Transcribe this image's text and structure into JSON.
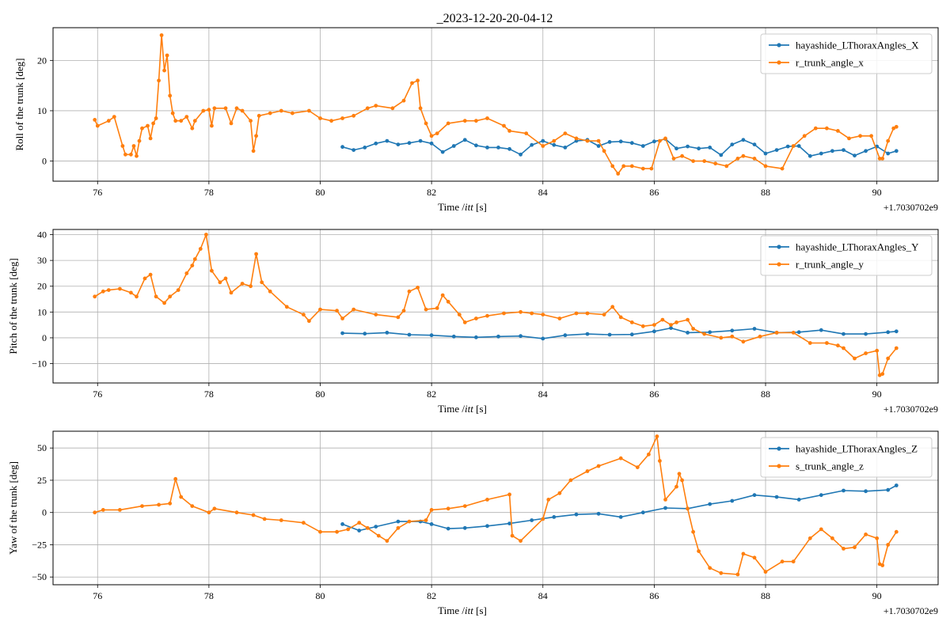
{
  "figure": {
    "title": "_2023-12-20-20-04-12"
  },
  "colors": {
    "series_a": "#1f77b4",
    "series_b": "#ff7f0e",
    "grid": "#b0b0b0"
  },
  "chart_data": [
    {
      "type": "line",
      "title": "_2023-12-20-20-04-12",
      "xlabel": "Time /$itt$ [s]",
      "ylabel": "Roll of the trunk [deg]",
      "offset_text": "+1.7030702e9",
      "xlim": [
        75.2,
        91.1
      ],
      "ylim": [
        -4,
        26.5
      ],
      "xticks": [
        76,
        78,
        80,
        82,
        84,
        86,
        88,
        90
      ],
      "yticks": [
        0,
        10,
        20
      ],
      "grid": true,
      "legend_position": "upper right",
      "series": [
        {
          "name": "hayashide_LThoraxAngles_X",
          "color": "#1f77b4",
          "x": [
            80.4,
            80.6,
            80.8,
            81.0,
            81.2,
            81.4,
            81.6,
            81.8,
            82.0,
            82.2,
            82.4,
            82.6,
            82.8,
            83.0,
            83.2,
            83.4,
            83.6,
            83.8,
            84.0,
            84.2,
            84.4,
            84.6,
            84.8,
            85.0,
            85.2,
            85.4,
            85.6,
            85.8,
            86.0,
            86.2,
            86.4,
            86.6,
            86.8,
            87.0,
            87.2,
            87.4,
            87.6,
            87.8,
            88.0,
            88.2,
            88.4,
            88.6,
            88.8,
            89.0,
            89.2,
            89.4,
            89.6,
            89.8,
            90.0,
            90.2,
            90.35
          ],
          "values": [
            2.8,
            2.2,
            2.7,
            3.5,
            4.0,
            3.3,
            3.6,
            4.0,
            3.5,
            1.8,
            3.0,
            4.2,
            3.1,
            2.7,
            2.7,
            2.4,
            1.3,
            3.2,
            4.0,
            3.2,
            2.7,
            4.0,
            4.2,
            3.0,
            3.8,
            3.9,
            3.6,
            3.0,
            3.9,
            4.4,
            2.5,
            2.9,
            2.5,
            2.7,
            1.2,
            3.3,
            4.2,
            3.3,
            1.5,
            2.2,
            2.9,
            3.0,
            1.0,
            1.5,
            2.0,
            2.2,
            1.1,
            2.0,
            2.9,
            1.5,
            2.0
          ]
        },
        {
          "name": "r_trunk_angle_x",
          "color": "#ff7f0e",
          "x": [
            75.95,
            76.0,
            76.2,
            76.3,
            76.45,
            76.5,
            76.6,
            76.65,
            76.7,
            76.75,
            76.8,
            76.9,
            76.95,
            77.0,
            77.05,
            77.1,
            77.15,
            77.2,
            77.25,
            77.3,
            77.35,
            77.4,
            77.5,
            77.6,
            77.7,
            77.75,
            77.9,
            78.0,
            78.05,
            78.1,
            78.3,
            78.4,
            78.5,
            78.6,
            78.75,
            78.8,
            78.85,
            78.9,
            79.1,
            79.3,
            79.5,
            79.8,
            80.0,
            80.2,
            80.4,
            80.6,
            80.85,
            81.0,
            81.3,
            81.5,
            81.65,
            81.75,
            81.8,
            81.9,
            82.0,
            82.1,
            82.3,
            82.6,
            82.8,
            83.0,
            83.3,
            83.4,
            83.7,
            84.0,
            84.2,
            84.4,
            84.6,
            84.8,
            85.0,
            85.1,
            85.25,
            85.35,
            85.45,
            85.6,
            85.8,
            85.95,
            86.1,
            86.2,
            86.35,
            86.5,
            86.7,
            86.9,
            87.1,
            87.3,
            87.5,
            87.6,
            87.8,
            88.0,
            88.3,
            88.5,
            88.7,
            88.9,
            89.1,
            89.3,
            89.5,
            89.7,
            89.9,
            90.05,
            90.1,
            90.2,
            90.3,
            90.35
          ],
          "values": [
            8.2,
            7.0,
            8.0,
            8.8,
            3.0,
            1.3,
            1.3,
            3.0,
            1.0,
            4.0,
            6.5,
            7.0,
            4.5,
            7.5,
            8.5,
            16.0,
            25.0,
            18.0,
            21.0,
            13.0,
            9.5,
            8.0,
            8.0,
            8.8,
            6.5,
            8.0,
            10.0,
            10.2,
            7.0,
            10.5,
            10.5,
            7.5,
            10.5,
            10.0,
            8.0,
            2.0,
            5.0,
            9.0,
            9.5,
            10.0,
            9.5,
            10.0,
            8.5,
            8.0,
            8.5,
            9.0,
            10.5,
            11.0,
            10.5,
            12.0,
            15.5,
            16.0,
            10.5,
            7.5,
            5.0,
            5.5,
            7.5,
            8.0,
            8.0,
            8.5,
            7.0,
            6.0,
            5.5,
            3.0,
            4.0,
            5.5,
            4.5,
            4.0,
            4.0,
            2.0,
            -1.0,
            -2.5,
            -1.0,
            -1.0,
            -1.5,
            -1.5,
            4.0,
            4.5,
            0.5,
            1.0,
            0.0,
            0.0,
            -0.5,
            -1.0,
            0.5,
            1.0,
            0.5,
            -1.0,
            -1.5,
            3.0,
            5.0,
            6.5,
            6.5,
            6.0,
            4.5,
            5.0,
            5.0,
            0.5,
            0.5,
            4.0,
            6.5,
            6.8
          ]
        }
      ]
    },
    {
      "type": "line",
      "xlabel": "Time /$itt$ [s]",
      "ylabel": "Pitch of the trunk [deg]",
      "offset_text": "+1.7030702e9",
      "xlim": [
        75.2,
        91.1
      ],
      "ylim": [
        -17.5,
        42
      ],
      "xticks": [
        76,
        78,
        80,
        82,
        84,
        86,
        88,
        90
      ],
      "yticks": [
        -10,
        0,
        10,
        20,
        30,
        40
      ],
      "grid": true,
      "legend_position": "upper right",
      "series": [
        {
          "name": "hayashide_LThoraxAngles_Y",
          "color": "#1f77b4",
          "x": [
            80.4,
            80.8,
            81.2,
            81.6,
            82.0,
            82.4,
            82.8,
            83.2,
            83.6,
            84.0,
            84.4,
            84.8,
            85.2,
            85.6,
            86.0,
            86.3,
            86.6,
            87.0,
            87.4,
            87.8,
            88.2,
            88.6,
            89.0,
            89.4,
            89.8,
            90.2,
            90.35
          ],
          "values": [
            1.8,
            1.6,
            2.0,
            1.2,
            1.0,
            0.5,
            0.2,
            0.5,
            0.7,
            -0.3,
            1.0,
            1.5,
            1.2,
            1.3,
            2.5,
            3.8,
            2.0,
            2.2,
            2.8,
            3.5,
            2.0,
            2.2,
            3.0,
            1.5,
            1.5,
            2.2,
            2.5
          ]
        },
        {
          "name": "r_trunk_angle_y",
          "color": "#ff7f0e",
          "x": [
            75.95,
            76.1,
            76.2,
            76.4,
            76.6,
            76.7,
            76.85,
            76.95,
            77.05,
            77.2,
            77.3,
            77.45,
            77.6,
            77.7,
            77.75,
            77.85,
            77.95,
            78.05,
            78.2,
            78.3,
            78.4,
            78.6,
            78.75,
            78.85,
            78.95,
            79.1,
            79.4,
            79.7,
            79.8,
            80.0,
            80.3,
            80.4,
            80.6,
            81.0,
            81.4,
            81.5,
            81.6,
            81.75,
            81.9,
            82.1,
            82.2,
            82.3,
            82.5,
            82.6,
            82.8,
            83.0,
            83.3,
            83.6,
            83.8,
            84.0,
            84.3,
            84.6,
            84.8,
            85.1,
            85.25,
            85.4,
            85.6,
            85.8,
            86.0,
            86.15,
            86.3,
            86.4,
            86.6,
            86.7,
            86.9,
            87.2,
            87.4,
            87.6,
            87.9,
            88.2,
            88.5,
            88.8,
            89.1,
            89.3,
            89.4,
            89.6,
            89.8,
            90.0,
            90.05,
            90.1,
            90.2,
            90.35
          ],
          "values": [
            16.0,
            18.0,
            18.5,
            19.0,
            17.5,
            16.0,
            23.0,
            24.5,
            16.0,
            13.5,
            16.0,
            18.5,
            25.0,
            28.0,
            30.5,
            34.5,
            40.0,
            26.0,
            21.5,
            23.0,
            17.5,
            21.0,
            20.0,
            32.5,
            21.5,
            18.0,
            12.0,
            9.0,
            6.5,
            11.0,
            10.5,
            7.5,
            11.0,
            9.0,
            8.0,
            10.5,
            18.0,
            19.5,
            11.0,
            11.5,
            16.5,
            14.0,
            9.0,
            6.0,
            7.5,
            8.5,
            9.5,
            10.0,
            9.5,
            9.0,
            7.5,
            9.5,
            9.5,
            9.0,
            12.0,
            8.0,
            6.0,
            4.5,
            5.0,
            7.0,
            5.0,
            6.0,
            7.0,
            3.5,
            1.5,
            0.0,
            0.5,
            -1.5,
            0.5,
            2.0,
            2.0,
            -2.0,
            -2.0,
            -3.0,
            -4.0,
            -8.0,
            -6.0,
            -5.0,
            -14.5,
            -14.0,
            -8.0,
            -4.0
          ]
        }
      ]
    },
    {
      "type": "line",
      "xlabel": "Time /$itt$ [s]",
      "ylabel": "Yaw of the trunk [deg]",
      "offset_text": "+1.7030702e9",
      "xlim": [
        75.2,
        91.1
      ],
      "ylim": [
        -56,
        63
      ],
      "xticks": [
        76,
        78,
        80,
        82,
        84,
        86,
        88,
        90
      ],
      "yticks": [
        -50,
        -25,
        0,
        25,
        50
      ],
      "grid": true,
      "legend_position": "upper right",
      "series": [
        {
          "name": "hayashide_LThoraxAngles_Z",
          "color": "#1f77b4",
          "x": [
            80.4,
            80.7,
            81.0,
            81.4,
            81.8,
            82.0,
            82.3,
            82.6,
            83.0,
            83.4,
            83.8,
            84.2,
            84.6,
            85.0,
            85.4,
            85.8,
            86.2,
            86.6,
            87.0,
            87.4,
            87.8,
            88.2,
            88.6,
            89.0,
            89.4,
            89.8,
            90.2,
            90.35
          ],
          "values": [
            -9,
            -14,
            -11,
            -7,
            -7,
            -9,
            -12.5,
            -12,
            -10.5,
            -8.5,
            -6,
            -3.5,
            -1.5,
            -1.0,
            -3.5,
            0,
            3.5,
            3.0,
            6.5,
            9.0,
            13.5,
            12.0,
            10.0,
            13.5,
            17.0,
            16.5,
            17.5,
            21.0
          ]
        },
        {
          "name": "s_trunk_angle_z",
          "color": "#ff7f0e",
          "x": [
            75.95,
            76.1,
            76.4,
            76.8,
            77.1,
            77.3,
            77.4,
            77.5,
            77.7,
            78.0,
            78.1,
            78.5,
            78.8,
            79.0,
            79.3,
            79.7,
            80.0,
            80.3,
            80.5,
            80.7,
            80.85,
            81.05,
            81.2,
            81.4,
            81.6,
            81.9,
            82.0,
            82.3,
            82.6,
            83.0,
            83.4,
            83.45,
            83.6,
            84.0,
            84.1,
            84.3,
            84.5,
            84.8,
            85.0,
            85.4,
            85.7,
            85.9,
            86.05,
            86.1,
            86.2,
            86.4,
            86.45,
            86.5,
            86.6,
            86.7,
            86.8,
            87.0,
            87.2,
            87.5,
            87.6,
            87.8,
            88.0,
            88.3,
            88.5,
            88.8,
            89.0,
            89.2,
            89.4,
            89.6,
            89.8,
            90.0,
            90.05,
            90.1,
            90.2,
            90.35
          ],
          "values": [
            0,
            2,
            2,
            5,
            6,
            7,
            26,
            12,
            5,
            0,
            3,
            0,
            -2,
            -5,
            -6,
            -8,
            -15,
            -15,
            -13,
            -8,
            -12,
            -18,
            -22,
            -12,
            -7,
            -6,
            2,
            3,
            5,
            10,
            14,
            -18,
            -22,
            -5,
            10,
            15,
            25,
            32,
            36,
            42,
            35,
            45,
            59,
            40,
            10,
            20,
            30,
            25,
            3,
            -15,
            -30,
            -43,
            -47,
            -48,
            -32,
            -35,
            -46,
            -38,
            -38,
            -20,
            -13,
            -20,
            -28,
            -27,
            -17,
            -20,
            -40,
            -41,
            -25,
            -15
          ]
        }
      ]
    }
  ]
}
